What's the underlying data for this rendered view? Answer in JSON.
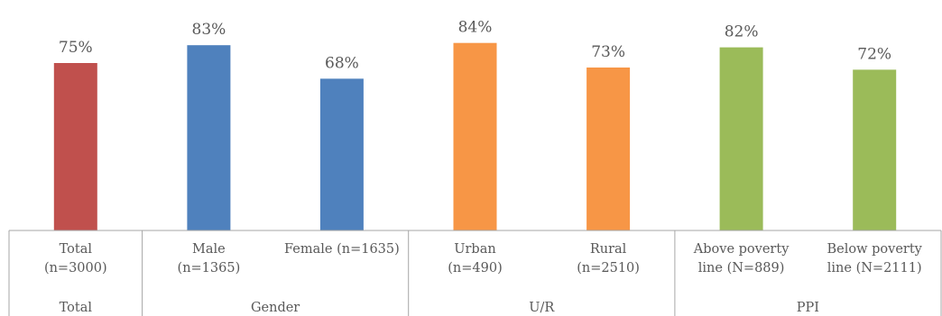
{
  "chart_data": {
    "type": "bar",
    "ylim": [
      0,
      100
    ],
    "grid": false,
    "legend": "none",
    "categories": [
      [
        "Total",
        "(n=3000)"
      ],
      [
        "Male",
        "(n=1365)"
      ],
      [
        "Female (n=1635)"
      ],
      [
        "Urban",
        "(n=490)"
      ],
      [
        "Rural",
        "(n=2510)"
      ],
      [
        "Above poverty",
        "line (N=889)"
      ],
      [
        "Below poverty",
        "line (N=2111)"
      ]
    ],
    "groups": [
      {
        "label": "Total",
        "span": 1
      },
      {
        "label": "Gender",
        "span": 2
      },
      {
        "label": "U/R",
        "span": 2
      },
      {
        "label": "PPI",
        "span": 2
      }
    ],
    "values": [
      75,
      83,
      68,
      84,
      73,
      82,
      72
    ],
    "data_labels": [
      "75%",
      "83%",
      "68%",
      "84%",
      "73%",
      "82%",
      "72%"
    ],
    "colors": [
      "#C0504D",
      "#4F81BD",
      "#4F81BD",
      "#F79646",
      "#F79646",
      "#9BBB59",
      "#9BBB59"
    ]
  }
}
